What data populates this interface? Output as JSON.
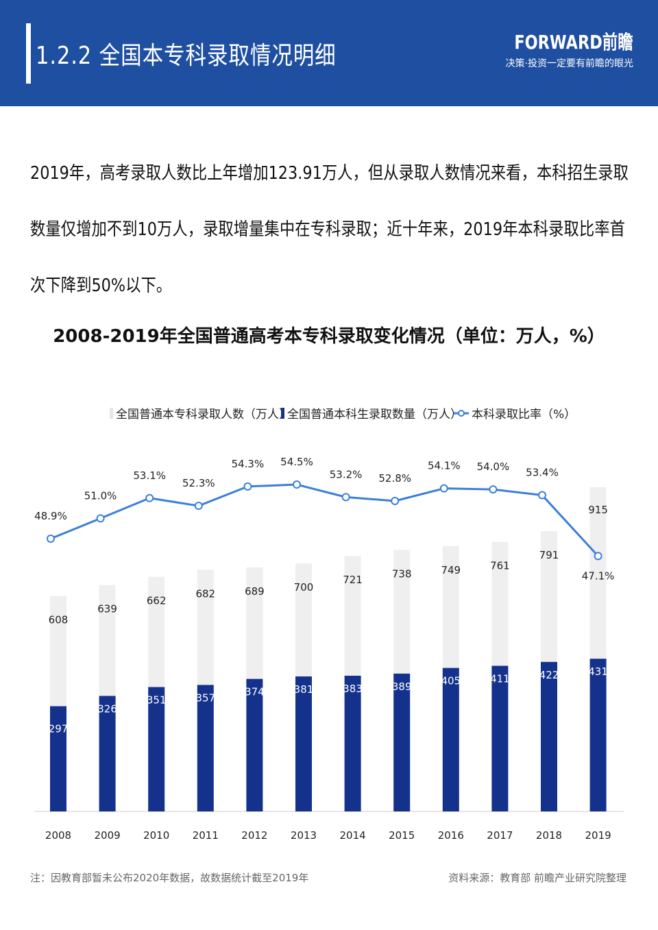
{
  "header": {
    "title": "1.2.2 全国本专科录取情况明细",
    "logo": "FORWARD前瞻",
    "slogan": "决策·投资一定要有前瞻的眼光"
  },
  "intro": "2019年，高考录取人数比上年增加123.91万人，但从录取人数情况来看，本科招生录取数量仅增加不到10万人，录取增量集中在专科录取；近十年来，2019年本科录取比率首次下降到50%以下。",
  "footer": {
    "note": "注：因教育部暂未公布2020年数据，故数据统计截至2019年",
    "source": "资料来源：教育部 前瞻产业研究院整理"
  },
  "chart_data": {
    "type": "bar+line",
    "title": "2008-2019年全国普通高考本专科录取变化情况（单位：万人，%）",
    "categories": [
      "2008",
      "2009",
      "2010",
      "2011",
      "2012",
      "2013",
      "2014",
      "2015",
      "2016",
      "2017",
      "2018",
      "2019"
    ],
    "series": [
      {
        "name": "全国普通本专科录取人数（万人）",
        "type": "bar",
        "color": "#efefef",
        "values": [
          608,
          639,
          662,
          682,
          689,
          700,
          721,
          738,
          749,
          761,
          791,
          915
        ]
      },
      {
        "name": "全国普通本科生录取数量（万人）",
        "type": "bar",
        "color": "#14328c",
        "values": [
          297,
          326,
          351,
          357,
          374,
          381,
          383,
          389,
          405,
          411,
          422,
          431
        ]
      },
      {
        "name": "本科录取比率（%）",
        "type": "line",
        "color": "#3a7fd9",
        "values": [
          48.9,
          51.0,
          53.1,
          52.3,
          54.3,
          54.5,
          53.2,
          52.8,
          54.1,
          54.0,
          53.4,
          47.1
        ],
        "labels": [
          "48.9%",
          "51.0%",
          "53.1%",
          "52.3%",
          "54.3%",
          "54.5%",
          "53.2%",
          "52.8%",
          "54.1%",
          "54.0%",
          "53.4%",
          "47.1%"
        ]
      }
    ],
    "legend": "top"
  }
}
